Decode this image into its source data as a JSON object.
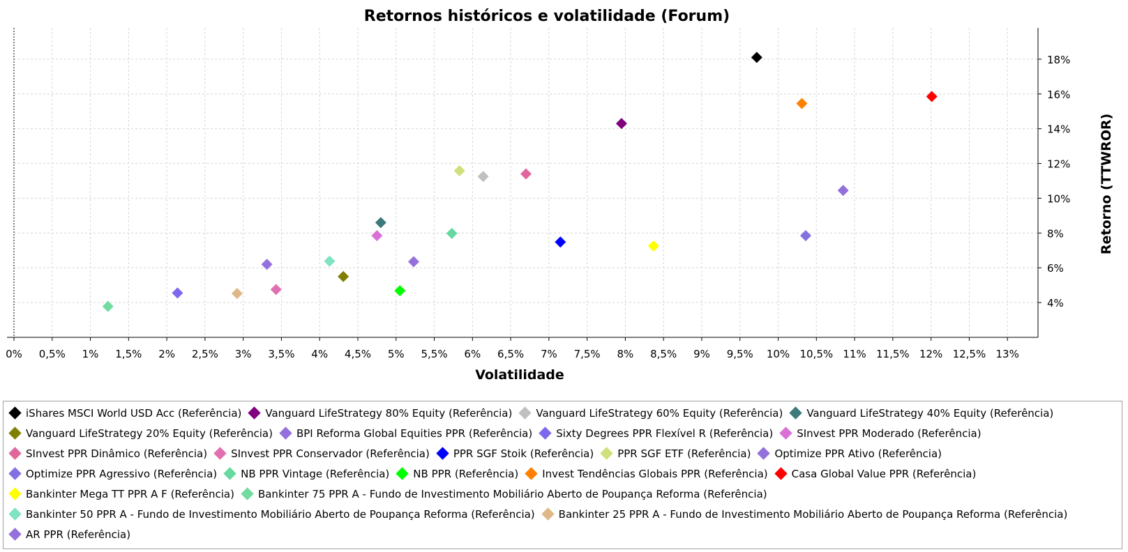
{
  "chart_data": {
    "type": "scatter",
    "title": "Retornos históricos e volatilidade (Forum)",
    "xlabel": "Volatilidade",
    "ylabel": "Retorno (TTWROR)",
    "xlim": [
      0,
      0.134
    ],
    "ylim": [
      0.02,
      0.198
    ],
    "x_ticks": [
      "0%",
      "0,5%",
      "1%",
      "1,5%",
      "2%",
      "2,5%",
      "3%",
      "3,5%",
      "4%",
      "4,5%",
      "5%",
      "5,5%",
      "6%",
      "6,5%",
      "7%",
      "7,5%",
      "8%",
      "8,5%",
      "9%",
      "9,5%",
      "10%",
      "10,5%",
      "11%",
      "11,5%",
      "12%",
      "12,5%",
      "13%"
    ],
    "y_ticks": [
      "4%",
      "6%",
      "8%",
      "10%",
      "12%",
      "14%",
      "16%",
      "18%"
    ],
    "grid": true,
    "legend_position": "bottom",
    "series": [
      {
        "name": "iShares MSCI World USD Acc (Referência)",
        "color": "#000000",
        "x": 0.0972,
        "y": 0.181
      },
      {
        "name": "Vanguard LifeStrategy 80% Equity (Referência)",
        "color": "#800080",
        "x": 0.0795,
        "y": 0.143
      },
      {
        "name": "Vanguard LifeStrategy 60% Equity (Referência)",
        "color": "#c0c0c0",
        "x": 0.0614,
        "y": 0.1125
      },
      {
        "name": "Vanguard LifeStrategy 40% Equity (Referência)",
        "color": "#3d7a7a",
        "x": 0.048,
        "y": 0.086
      },
      {
        "name": "Vanguard LifeStrategy 20% Equity (Referência)",
        "color": "#808000",
        "x": 0.0431,
        "y": 0.055
      },
      {
        "name": "BPI Reforma Global Equities PPR (Referência)",
        "color": "#9370db",
        "x": 0.0331,
        "y": 0.062
      },
      {
        "name": "Sixty Degrees PPR Flexível R (Referência)",
        "color": "#7b68ee",
        "x": 0.0214,
        "y": 0.0455
      },
      {
        "name": "SInvest PPR Moderado (Referência)",
        "color": "#da70d6",
        "x": 0.0475,
        "y": 0.0785
      },
      {
        "name": "SInvest PPR Dinâmico (Referência)",
        "color": "#e0679b",
        "x": 0.067,
        "y": 0.114
      },
      {
        "name": "SInvest PPR Conservador (Referência)",
        "color": "#e26fb0",
        "x": 0.0343,
        "y": 0.0475
      },
      {
        "name": "PPR SGF Stoik (Referência)",
        "color": "#0000ff",
        "x": 0.0715,
        "y": 0.0748
      },
      {
        "name": "PPR SGF ETF (Referência)",
        "color": "#cfe07a",
        "x": 0.0583,
        "y": 0.1158
      },
      {
        "name": "Optimize PPR Ativo (Referência)",
        "color": "#9370db",
        "x": 0.0523,
        "y": 0.0635
      },
      {
        "name": "Optimize PPR Agressivo (Referência)",
        "color": "#8470e0",
        "x": 0.1036,
        "y": 0.0785
      },
      {
        "name": "NB PPR Vintage (Referência)",
        "color": "#66d9a0",
        "x": 0.0573,
        "y": 0.0798
      },
      {
        "name": "NB PPR (Referência)",
        "color": "#00ff00",
        "x": 0.0505,
        "y": 0.0468
      },
      {
        "name": "Invest Tendências Globais PPR (Referência)",
        "color": "#ff8000",
        "x": 0.1031,
        "y": 0.1545
      },
      {
        "name": "Casa Global Value PPR (Referência)",
        "color": "#ff0000",
        "x": 0.1201,
        "y": 0.1585
      },
      {
        "name": "Bankinter Mega TT PPR A F (Referência)",
        "color": "#ffff00",
        "x": 0.0837,
        "y": 0.0725
      },
      {
        "name": "Bankinter 75 PPR A - Fundo de Investimento Mobiliário Aberto de Poupança Reforma (Referência)",
        "color": "#72dba0",
        "x": 0.0123,
        "y": 0.0378
      },
      {
        "name": "Bankinter 50 PPR A - Fundo de Investimento Mobiliário Aberto de Poupança Reforma (Referência)",
        "color": "#7fe3c4",
        "x": 0.0413,
        "y": 0.0638
      },
      {
        "name": "Bankinter 25 PPR A - Fundo de Investimento Mobiliário Aberto de Poupança Reforma (Referência)",
        "color": "#deb887",
        "x": 0.0292,
        "y": 0.0452
      },
      {
        "name": "AR PPR (Referência)",
        "color": "#9370db",
        "x": 0.1085,
        "y": 0.1045
      }
    ],
    "legend_rows": [
      [
        0,
        1,
        2,
        3
      ],
      [
        4,
        5,
        6,
        7
      ],
      [
        8,
        9,
        10,
        11,
        12
      ],
      [
        13,
        14,
        15,
        16,
        17
      ],
      [
        18,
        19
      ],
      [
        20,
        21
      ],
      [
        22
      ]
    ]
  }
}
